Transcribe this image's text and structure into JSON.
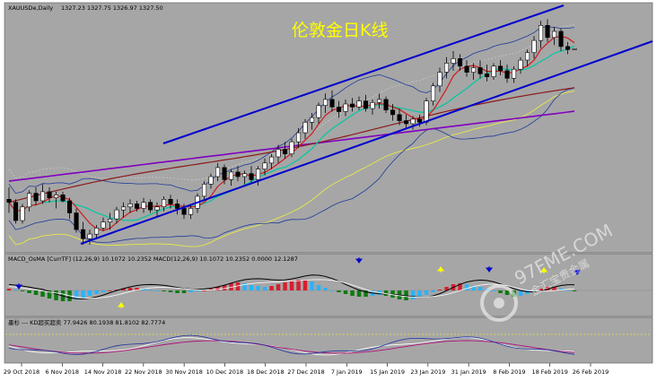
{
  "header": {
    "symbol": "XAUUSDe,Daily",
    "ohlc": "1327.23 1327.75 1326.97 1327.50"
  },
  "watermark": {
    "site": "97FME.COM",
    "tagline": "金汇宝贵金属"
  },
  "colors": {
    "background": "#a6a6a6",
    "channel": "#0000cc",
    "candle_up": "#ffffff",
    "candle_down": "#000000",
    "ma_fast": "#d01a1a",
    "ma_mid": "#00c8a0",
    "ma_slow": "#8b1a1a",
    "ma_long": "#8000c0",
    "bollinger": "#1e3a9a",
    "envelope": "#e8e84a",
    "hist_pos": "#d42030",
    "hist_neg": "#0e7a12",
    "hist_light": "#28b4ff",
    "arrow_down": "#0000cc",
    "arrow_up": "#ffff00"
  },
  "chart_data": [
    {
      "type": "candlestick",
      "title": "伦敦金日K线",
      "x_labels": [
        "29 Oct 2018",
        "6 Nov 2018",
        "14 Nov 2018",
        "22 Nov 2018",
        "30 Nov 2018",
        "10 Dec 2018",
        "18 Dec 2018",
        "27 Dec 2018",
        "7 Jan 2019",
        "15 Jan 2019",
        "23 Jan 2019",
        "31 Jan 2019",
        "8 Feb 2019",
        "18 Feb 2019",
        "26 Feb 2019"
      ],
      "ylim": [
        1195,
        1355
      ],
      "candles": [
        [
          1228,
          1236,
          1219,
          1226
        ],
        [
          1226,
          1228,
          1212,
          1214
        ],
        [
          1214,
          1225,
          1212,
          1223
        ],
        [
          1223,
          1234,
          1220,
          1232
        ],
        [
          1232,
          1236,
          1224,
          1227
        ],
        [
          1227,
          1238,
          1225,
          1233
        ],
        [
          1233,
          1236,
          1226,
          1229
        ],
        [
          1229,
          1233,
          1222,
          1231
        ],
        [
          1231,
          1233,
          1226,
          1227
        ],
        [
          1227,
          1229,
          1215,
          1219
        ],
        [
          1219,
          1222,
          1206,
          1208
        ],
        [
          1208,
          1213,
          1198,
          1202
        ],
        [
          1202,
          1208,
          1198,
          1205
        ],
        [
          1205,
          1211,
          1202,
          1209
        ],
        [
          1209,
          1216,
          1207,
          1213
        ],
        [
          1213,
          1219,
          1208,
          1215
        ],
        [
          1215,
          1223,
          1212,
          1221
        ],
        [
          1221,
          1226,
          1216,
          1223
        ],
        [
          1223,
          1228,
          1219,
          1225
        ],
        [
          1225,
          1227,
          1220,
          1222
        ],
        [
          1222,
          1229,
          1219,
          1226
        ],
        [
          1226,
          1228,
          1219,
          1221
        ],
        [
          1221,
          1226,
          1216,
          1223
        ],
        [
          1223,
          1230,
          1220,
          1228
        ],
        [
          1228,
          1231,
          1222,
          1225
        ],
        [
          1225,
          1228,
          1218,
          1222
        ],
        [
          1222,
          1225,
          1215,
          1218
        ],
        [
          1218,
          1224,
          1215,
          1222
        ],
        [
          1222,
          1232,
          1219,
          1230
        ],
        [
          1230,
          1240,
          1227,
          1238
        ],
        [
          1238,
          1245,
          1235,
          1243
        ],
        [
          1243,
          1252,
          1240,
          1249
        ],
        [
          1249,
          1251,
          1238,
          1241
        ],
        [
          1241,
          1248,
          1237,
          1246
        ],
        [
          1246,
          1250,
          1240,
          1243
        ],
        [
          1243,
          1247,
          1238,
          1245
        ],
        [
          1245,
          1250,
          1239,
          1241
        ],
        [
          1241,
          1250,
          1237,
          1248
        ],
        [
          1248,
          1255,
          1244,
          1252
        ],
        [
          1252,
          1258,
          1248,
          1256
        ],
        [
          1256,
          1264,
          1252,
          1261
        ],
        [
          1261,
          1266,
          1255,
          1258
        ],
        [
          1258,
          1268,
          1256,
          1266
        ],
        [
          1266,
          1275,
          1262,
          1272
        ],
        [
          1272,
          1281,
          1268,
          1279
        ],
        [
          1279,
          1285,
          1274,
          1282
        ],
        [
          1282,
          1292,
          1278,
          1290
        ],
        [
          1290,
          1298,
          1285,
          1294
        ],
        [
          1294,
          1300,
          1286,
          1289
        ],
        [
          1289,
          1293,
          1282,
          1286
        ],
        [
          1286,
          1294,
          1283,
          1291
        ],
        [
          1291,
          1295,
          1286,
          1289
        ],
        [
          1289,
          1296,
          1287,
          1293
        ],
        [
          1293,
          1297,
          1286,
          1288
        ],
        [
          1288,
          1294,
          1284,
          1292
        ],
        [
          1292,
          1298,
          1288,
          1294
        ],
        [
          1294,
          1296,
          1285,
          1287
        ],
        [
          1287,
          1291,
          1280,
          1284
        ],
        [
          1284,
          1288,
          1277,
          1280
        ],
        [
          1280,
          1284,
          1275,
          1278
        ],
        [
          1278,
          1283,
          1274,
          1281
        ],
        [
          1281,
          1284,
          1276,
          1279
        ],
        [
          1279,
          1295,
          1277,
          1293
        ],
        [
          1293,
          1305,
          1290,
          1303
        ],
        [
          1303,
          1315,
          1299,
          1312
        ],
        [
          1312,
          1322,
          1308,
          1318
        ],
        [
          1318,
          1326,
          1313,
          1321
        ],
        [
          1321,
          1324,
          1313,
          1316
        ],
        [
          1316,
          1320,
          1309,
          1312
        ],
        [
          1312,
          1318,
          1307,
          1315
        ],
        [
          1315,
          1320,
          1308,
          1311
        ],
        [
          1311,
          1317,
          1306,
          1309
        ],
        [
          1309,
          1318,
          1307,
          1316
        ],
        [
          1316,
          1320,
          1310,
          1313
        ],
        [
          1313,
          1317,
          1305,
          1308
        ],
        [
          1308,
          1316,
          1305,
          1314
        ],
        [
          1314,
          1322,
          1311,
          1320
        ],
        [
          1320,
          1327,
          1316,
          1325
        ],
        [
          1325,
          1336,
          1321,
          1333
        ],
        [
          1333,
          1346,
          1328,
          1343
        ],
        [
          1343,
          1347,
          1332,
          1335
        ],
        [
          1335,
          1342,
          1330,
          1339
        ],
        [
          1339,
          1341,
          1326,
          1329
        ],
        [
          1329,
          1332,
          1324,
          1327
        ],
        [
          1327.23,
          1327.75,
          1326.97,
          1327.5
        ]
      ]
    },
    {
      "type": "bar",
      "title": "MACD_OsMA [CurrTF] (12,26,9) 10.1072 10.2352 MACD(12,26,9) 10.1072 10.2352 0.0000 12.1287",
      "values": [
        2,
        1,
        -1,
        -3,
        -5,
        -7,
        -9,
        -11,
        -12,
        -12,
        -10,
        -8,
        -6,
        -4,
        -2,
        0,
        1,
        2,
        3,
        3,
        2,
        1,
        0,
        -1,
        -2,
        -3,
        -3,
        -2,
        -1,
        0,
        2,
        4,
        6,
        8,
        9,
        8,
        6,
        5,
        4,
        5,
        7,
        9,
        11,
        12,
        12,
        10,
        6,
        3,
        0,
        -2,
        -4,
        -6,
        -7,
        -7,
        -6,
        -5,
        -6,
        -8,
        -10,
        -11,
        -10,
        -8,
        -5,
        -2,
        1,
        4,
        7,
        8,
        7,
        5,
        4,
        2,
        0,
        -3,
        -5,
        -7,
        -6,
        -4,
        -1,
        2,
        4,
        4,
        2,
        0,
        -1
      ]
    },
    {
      "type": "line",
      "title": "墨杉 --- KD超买超卖 77.9426 80.1938 81.8102 82.7774"
    }
  ]
}
